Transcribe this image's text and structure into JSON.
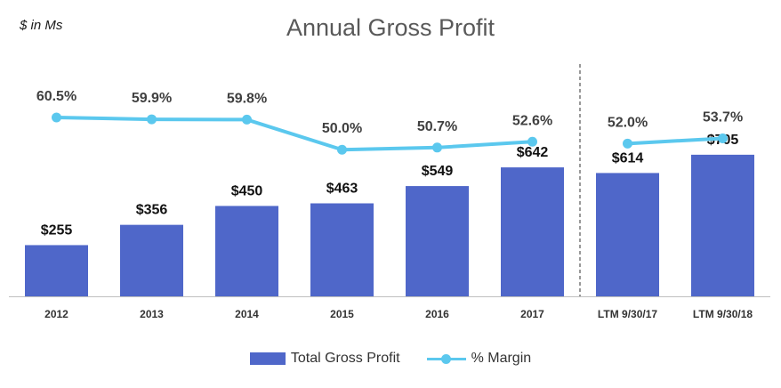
{
  "chart_data": {
    "type": "bar",
    "title": "Annual Gross Profit",
    "units_note": "$ in Ms",
    "categories": [
      "2012",
      "2013",
      "2014",
      "2015",
      "2016",
      "2017",
      "LTM 9/30/17",
      "LTM 9/30/18"
    ],
    "ylim": [
      0,
      800
    ],
    "series": [
      {
        "name": "Total Gross Profit",
        "kind": "bar",
        "color": "#4f67c9",
        "values": [
          255,
          356,
          450,
          463,
          549,
          642,
          614,
          705
        ],
        "labels": [
          "$255",
          "$356",
          "$450",
          "$463",
          "$549",
          "$642",
          "$614",
          "$705"
        ]
      },
      {
        "name": "% Margin",
        "kind": "line",
        "color": "#5bc8ee",
        "values": [
          60.5,
          59.9,
          59.8,
          50.0,
          50.7,
          52.6,
          52.0,
          53.7
        ],
        "labels": [
          "60.5%",
          "59.9%",
          "59.8%",
          "50.0%",
          "50.7%",
          "52.6%",
          "52.0%",
          "53.7%"
        ]
      }
    ],
    "divider_after_category": "2017",
    "grid": false,
    "legend_position": "bottom"
  }
}
